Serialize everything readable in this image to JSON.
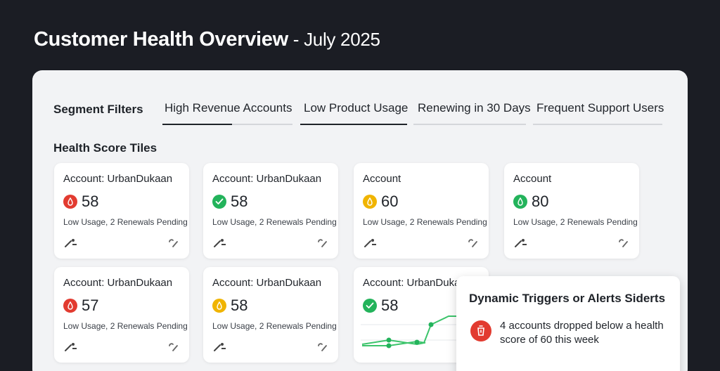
{
  "header": {
    "title": "Customer Health Overview",
    "subtitle": " - July 2025"
  },
  "filters": {
    "label": "Segment Filters",
    "tabs": [
      {
        "label": "High Revenue Accounts"
      },
      {
        "label": "Low Product Usage"
      },
      {
        "label": "Renewing in 30 Days"
      },
      {
        "label": "Frequent Support Users"
      }
    ]
  },
  "tiles_section": {
    "label": "Health Score Tiles"
  },
  "tiles": [
    {
      "account": "Account: UrbanDukaan",
      "score": "58",
      "status": "red",
      "status_icon": "alert-drop-icon",
      "desc": "Low Usage, 2 Renewals Pending"
    },
    {
      "account": "Account: UrbanDukaan",
      "score": "58",
      "status": "green",
      "status_icon": "check-icon",
      "desc": "Low Usage, 2 Renewals Pending"
    },
    {
      "account": "Account",
      "score": "60",
      "status": "yellow",
      "status_icon": "alert-drop-icon",
      "desc": "Low Usage, 2 Renewals Pending"
    },
    {
      "account": "Account",
      "score": "80",
      "status": "green",
      "status_icon": "alert-drop-icon",
      "desc": "Low Usage, 2 Renewals Pending"
    },
    {
      "account": "Account: UrbanDukaan",
      "score": "57",
      "status": "red",
      "status_icon": "alert-drop-icon",
      "desc": "Low Usage, 2 Renewals Pending"
    },
    {
      "account": "Account: UrbanDukaan",
      "score": "58",
      "status": "yellow",
      "status_icon": "alert-drop-icon",
      "desc": "Low Usage, 2 Renewals Pending"
    },
    {
      "account": "Account: UrbanDukaa",
      "score": "58",
      "status": "green",
      "status_icon": "check-icon",
      "desc": ""
    }
  ],
  "alerts": {
    "title": "Dynamic Triggers or Alerts Siderts",
    "message": "4 accounts dropped below a health score of 60 this week",
    "icon": "alert-icon"
  },
  "colors": {
    "red": "#e23b30",
    "green": "#23b35b",
    "yellow": "#f0b400",
    "background": "#1b1d24",
    "panel": "#f2f3f5"
  }
}
